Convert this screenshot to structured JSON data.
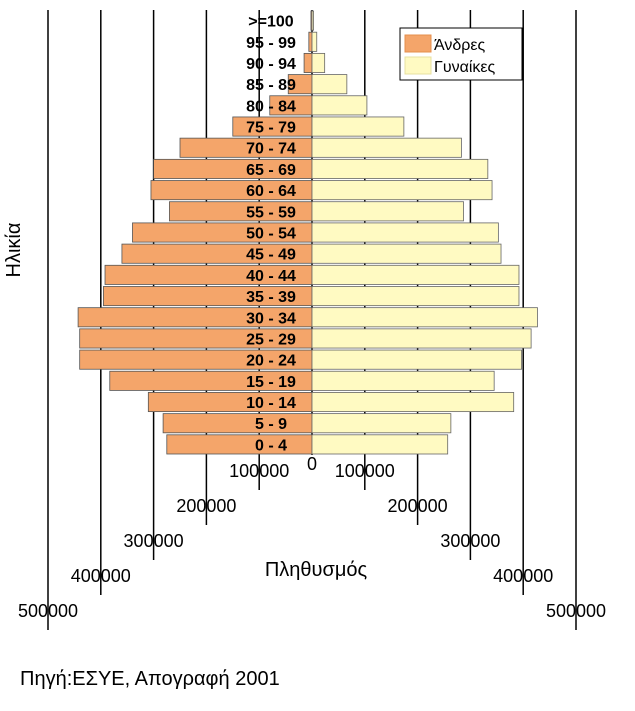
{
  "chart_data": {
    "type": "bar",
    "orientation": "horizontal",
    "title": "",
    "xlabel": "Πληθυσμός",
    "ylabel": "Ηλικία",
    "categories": [
      "0 - 4",
      "5 - 9",
      "10 - 14",
      "15 - 19",
      "20 - 24",
      "25 - 29",
      "30 - 34",
      "35 - 39",
      "40 - 44",
      "45 - 49",
      "50 - 54",
      "55 - 59",
      "60 - 64",
      "65 - 69",
      "70 - 74",
      "75 - 79",
      "80 - 84",
      "85 - 89",
      "90 - 94",
      "95 - 99",
      ">=100"
    ],
    "series": [
      {
        "name": "Άνδρες",
        "color": "#f4a56a",
        "values": [
          275000,
          282000,
          310000,
          383000,
          440000,
          440000,
          443000,
          395000,
          392000,
          360000,
          340000,
          270000,
          305000,
          300000,
          250000,
          150000,
          80000,
          45000,
          15000,
          6000,
          2000
        ]
      },
      {
        "name": "Γυναίκες",
        "color": "#fffac2",
        "values": [
          257000,
          263000,
          382000,
          345000,
          397000,
          415000,
          427000,
          392000,
          392000,
          358000,
          353000,
          287000,
          341000,
          333000,
          283000,
          174000,
          104000,
          66000,
          24000,
          9000,
          3000
        ]
      }
    ],
    "xlim": [
      -500000,
      500000
    ],
    "tick_labels": {
      "left": [
        "100000",
        "200000",
        "300000",
        "400000",
        "500000"
      ],
      "center": "0",
      "right": [
        "100000",
        "200000",
        "300000",
        "400000",
        "500000"
      ]
    },
    "grid": true,
    "legend": "top-right"
  },
  "source_note": "Πηγή:ΕΣΥΕ, Απογραφή 2001"
}
